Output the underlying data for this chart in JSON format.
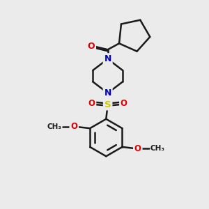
{
  "bg_color": "#ebebeb",
  "bond_color": "#1a1a1a",
  "N_color": "#0000cc",
  "O_color": "#dd0000",
  "S_color": "#cccc00",
  "line_width": 1.8,
  "fig_size": [
    3.0,
    3.0
  ],
  "dpi": 100,
  "xlim": [
    0,
    10
  ],
  "ylim": [
    0,
    10
  ]
}
